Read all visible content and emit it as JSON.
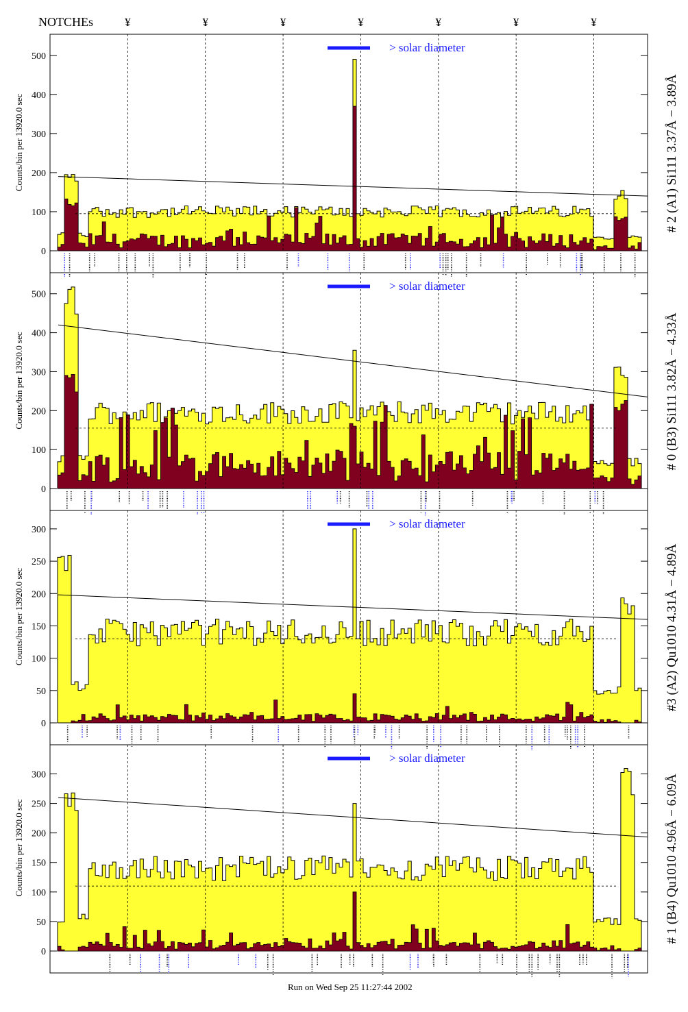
{
  "header": {
    "notches_label": "NOTCHEs",
    "notch_symbol": "¥",
    "notch_positions": [
      0.13,
      0.26,
      0.39,
      0.52,
      0.65,
      0.78,
      0.91
    ]
  },
  "footer": {
    "run_label": "Run on Wed Sep 25 11:27:44 2002"
  },
  "colors": {
    "total_fill": "#ffff33",
    "signal_fill": "#800020",
    "outline": "#000000",
    "annotation_blue": "#1a1aff"
  },
  "annotation_text": "> solar diameter",
  "chart_data": [
    {
      "type": "histogram",
      "title": "# 2 (A1) Si111  3.37Å − 3.89Å",
      "ylabel": "Counts/bin per  13920.0 sec",
      "ylim": [
        0,
        540
      ],
      "yticks": [
        0,
        100,
        200,
        300,
        400,
        500
      ],
      "ytick_labels": [
        "0",
        "100",
        "200",
        "300",
        "400",
        "500"
      ],
      "envelope_line": {
        "x": [
          0.0,
          1.0
        ],
        "y": [
          190,
          140
        ]
      },
      "dashed_baseline": 95,
      "peak": {
        "x": 0.52,
        "total": 490,
        "signal": 370
      },
      "edge_peaks": [
        {
          "x": 0.02,
          "total": 200,
          "signal": 140
        },
        {
          "x": 0.97,
          "total": 155,
          "signal": 90
        }
      ],
      "plateau": {
        "total": 100,
        "signal": 25
      }
    },
    {
      "type": "histogram",
      "title": "# 0 (B3) Si111  3.82Å − 4.33Å",
      "ylabel": "Counts/bin per  13920.0 sec",
      "ylim": [
        0,
        540
      ],
      "yticks": [
        0,
        100,
        200,
        300,
        400,
        500
      ],
      "ytick_labels": [
        "0",
        "100",
        "200",
        "300",
        "400",
        "500"
      ],
      "envelope_line": {
        "x": [
          0.0,
          1.0
        ],
        "y": [
          420,
          235
        ]
      },
      "dashed_baseline": 155,
      "peak": {
        "x": 0.52,
        "total": 355,
        "signal": 160
      },
      "edge_peaks": [
        {
          "x": 0.02,
          "total": 520,
          "signal": 300
        },
        {
          "x": 0.97,
          "total": 335,
          "signal": 245
        }
      ],
      "plateau": {
        "total": 195,
        "signal": 55
      }
    },
    {
      "type": "histogram",
      "title": "#3 (A2) Qu1010  4.31Å − 4.89Å",
      "ylabel": "Counts/bin per  13920.0 sec",
      "ylim": [
        0,
        320
      ],
      "yticks": [
        0,
        50,
        100,
        150,
        200,
        250,
        300
      ],
      "ytick_labels": [
        "0",
        "50",
        "100",
        "150",
        "200",
        "250",
        "300"
      ],
      "envelope_line": {
        "x": [
          0.0,
          1.0
        ],
        "y": [
          198,
          160
        ]
      },
      "dashed_baseline": 130,
      "peak": {
        "x": 0.52,
        "total": 300,
        "signal": 45
      },
      "edge_peaks": [
        {
          "x": 0.01,
          "total": 260,
          "signal": 0
        },
        {
          "x": 0.98,
          "total": 195,
          "signal": 0
        }
      ],
      "plateau": {
        "total": 140,
        "signal": 8
      }
    },
    {
      "type": "histogram",
      "title": "# 1 (B4) Qu1010 4.96Å − 6.09Å",
      "ylabel": "Counts/bin per  13920.0 sec",
      "ylim": [
        0,
        340
      ],
      "yticks": [
        0,
        50,
        100,
        150,
        200,
        250,
        300
      ],
      "ytick_labels": [
        "0",
        "50",
        "100",
        "150",
        "200",
        "250",
        "300"
      ],
      "envelope_line": {
        "x": [
          0.0,
          1.0
        ],
        "y": [
          260,
          193
        ]
      },
      "dashed_baseline": 110,
      "peak": {
        "x": 0.52,
        "total": 250,
        "signal": 100
      },
      "edge_peaks": [
        {
          "x": 0.02,
          "total": 280,
          "signal": 0
        },
        {
          "x": 0.98,
          "total": 310,
          "signal": 0
        }
      ],
      "plateau": {
        "total": 140,
        "signal": 10
      }
    }
  ]
}
